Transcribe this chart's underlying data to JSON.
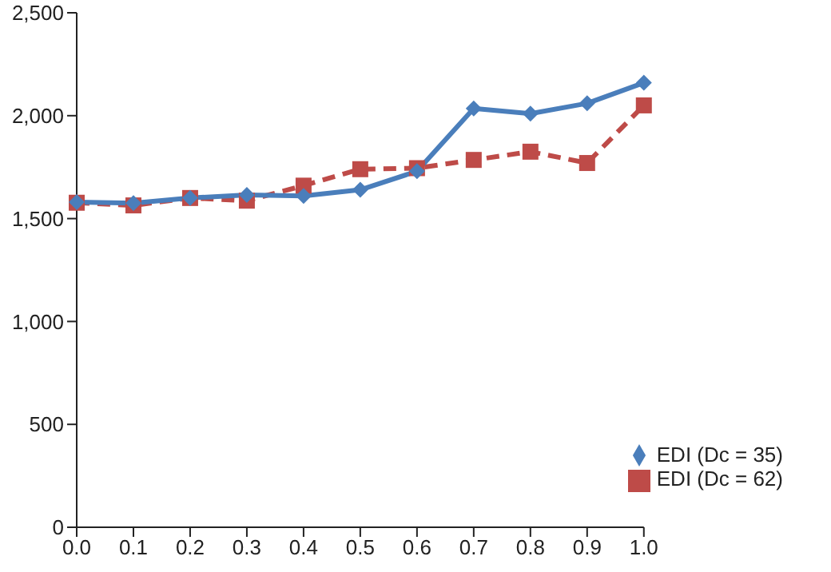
{
  "chart_data": {
    "type": "line",
    "categories": [
      "0.0",
      "0.1",
      "0.2",
      "0.3",
      "0.4",
      "0.5",
      "0.6",
      "0.7",
      "0.8",
      "0.9",
      "1.0"
    ],
    "ylim": [
      0,
      2500
    ],
    "yticks": [
      {
        "value": 0,
        "label": "0"
      },
      {
        "value": 500,
        "label": "500"
      },
      {
        "value": 1000,
        "label": "1,000"
      },
      {
        "value": 1500,
        "label": "1,500"
      },
      {
        "value": 2000,
        "label": "2,000"
      },
      {
        "value": 2500,
        "label": "2,500"
      }
    ],
    "grid": false,
    "legend": "bottom right",
    "series": [
      {
        "name": "EDI (Dc = 35)",
        "color": "#4a7ebb",
        "marker": "diamond",
        "line_style": "solid",
        "values": [
          1580,
          1575,
          1600,
          1615,
          1610,
          1640,
          1730,
          2035,
          2010,
          2060,
          2160
        ]
      },
      {
        "name": "EDI (Dc = 62)",
        "color": "#be4b48",
        "marker": "square",
        "line_style": "dashed",
        "values": [
          1577,
          1564,
          1600,
          1587,
          1660,
          1740,
          1745,
          1785,
          1825,
          1770,
          2050
        ]
      }
    ]
  }
}
